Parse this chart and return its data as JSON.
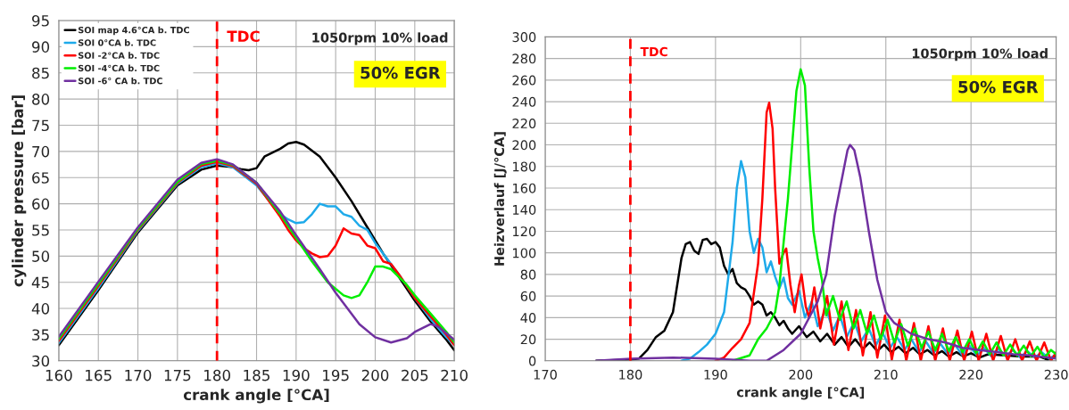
{
  "chart_data": [
    {
      "type": "line",
      "xlabel": "crank angle [°CA]",
      "ylabel": "cylinder pressure [bar]",
      "xlim": [
        160,
        210
      ],
      "xticks": [
        160,
        165,
        170,
        175,
        180,
        185,
        190,
        195,
        200,
        205,
        210
      ],
      "ylim": [
        30,
        95
      ],
      "yticks": [
        30,
        35,
        40,
        45,
        50,
        55,
        60,
        65,
        70,
        75,
        80,
        85,
        90,
        95
      ],
      "grid": true,
      "legend": "top left",
      "ref_lines": [
        {
          "axis": "x",
          "value": 180,
          "label": "TDC",
          "color": "#ff0000",
          "line_style": "dashed"
        }
      ],
      "annotations": [
        "1050rpm 10% load",
        "50% EGR"
      ],
      "series": [
        {
          "name": "SOI map 4.6°CA b. TDC",
          "color": "#000000",
          "x": [
            160,
            165,
            170,
            175,
            178,
            180,
            182,
            183,
            184,
            185,
            186,
            188,
            189,
            190,
            191,
            193,
            195,
            197,
            199,
            201,
            203,
            205,
            207,
            209,
            210
          ],
          "values": [
            33,
            43.5,
            54.5,
            63.5,
            66.5,
            67.3,
            67,
            66.6,
            66.4,
            66.8,
            69,
            70.5,
            71.5,
            71.8,
            71.3,
            69,
            65,
            60.5,
            55.5,
            50.5,
            46,
            41.5,
            37.5,
            34,
            32
          ]
        },
        {
          "name": "SOI 0°CA b. TDC",
          "color": "#1eaaea",
          "x": [
            160,
            165,
            170,
            175,
            178,
            180,
            182,
            185,
            188,
            189,
            190,
            191,
            192,
            193,
            194,
            195,
            196,
            197,
            198,
            199,
            200,
            201,
            203,
            205,
            207,
            209,
            210
          ],
          "values": [
            33.4,
            43.9,
            54.8,
            63.8,
            67,
            67.7,
            67,
            63.5,
            58,
            57,
            56.3,
            56.5,
            58,
            60,
            59.5,
            59.5,
            58,
            57.5,
            55.8,
            55,
            52.5,
            50.5,
            46.5,
            42,
            38,
            34.5,
            33
          ]
        },
        {
          "name": "SOI -2°CA b. TDC",
          "color": "#ff0000",
          "x": [
            160,
            165,
            170,
            175,
            178,
            180,
            182,
            185,
            188,
            189,
            190,
            191,
            192,
            193,
            194,
            195,
            196,
            197,
            198,
            199,
            200,
            201,
            202,
            203,
            205,
            207,
            209,
            210
          ],
          "values": [
            33.8,
            44.3,
            55,
            64,
            67.3,
            68,
            67.2,
            63.8,
            57.5,
            55,
            53,
            51.5,
            50.5,
            49.8,
            50,
            52,
            55.3,
            54.3,
            54,
            52,
            51.5,
            49,
            48.5,
            46.5,
            42,
            38.5,
            35,
            33
          ]
        },
        {
          "name": "SOI -4°CA b. TDC",
          "color": "#00ee00",
          "x": [
            160,
            165,
            170,
            175,
            178,
            180,
            182,
            185,
            188,
            190,
            192,
            194,
            196,
            197,
            198,
            199,
            200,
            201,
            202,
            203,
            204,
            205,
            207,
            209,
            210
          ],
          "values": [
            34.2,
            44.7,
            55.2,
            64.2,
            67.6,
            68.2,
            67.4,
            64,
            58,
            53.5,
            49,
            45,
            42.5,
            42,
            42.5,
            45,
            48,
            48,
            47.5,
            46,
            44.5,
            42.5,
            39,
            35.5,
            33.5
          ]
        },
        {
          "name": "SOI -6° CA b. TDC",
          "color": "#7030a0",
          "x": [
            160,
            165,
            170,
            175,
            178,
            180,
            182,
            185,
            188,
            190,
            193,
            195,
            198,
            200,
            202,
            204,
            205,
            207,
            208,
            210
          ],
          "values": [
            34.6,
            45.1,
            55.5,
            64.6,
            67.8,
            68.5,
            67.5,
            64,
            58.5,
            54,
            47.5,
            43,
            37,
            34.5,
            33.5,
            34.3,
            35.5,
            37,
            36.5,
            34
          ]
        }
      ]
    },
    {
      "type": "line",
      "xlabel": "crank angle [°CA]",
      "ylabel": "Heizverlauf [J/°CA]",
      "xlim": [
        170,
        230
      ],
      "xticks": [
        170,
        180,
        190,
        200,
        210,
        220,
        230
      ],
      "ylim": [
        0,
        300
      ],
      "yticks": [
        0,
        20,
        40,
        60,
        80,
        100,
        120,
        140,
        160,
        180,
        200,
        220,
        240,
        260,
        280,
        300
      ],
      "grid": true,
      "ref_lines": [
        {
          "axis": "x",
          "value": 180,
          "label": "TDC",
          "color": "#ff0000",
          "line_style": "dashed"
        }
      ],
      "annotations": [
        "1050rpm 10% load",
        "50% EGR"
      ],
      "series": [
        {
          "color": "#000000",
          "x": [
            176,
            180,
            181,
            182,
            183,
            184,
            185,
            186,
            186.5,
            187,
            187.5,
            188,
            188.5,
            189,
            189.5,
            190,
            190.5,
            191,
            191.5,
            192,
            192.5,
            193,
            193.5,
            194,
            194.5,
            195,
            195.5,
            196,
            196.5,
            197,
            197.5,
            198,
            198.5,
            199,
            199.8,
            200.7,
            201.5,
            202.3,
            203.1,
            204,
            204.8,
            205.6,
            206.4,
            207.3,
            208.1,
            209,
            209.8,
            210.6,
            211.5,
            212.3,
            213.2,
            214,
            214.9,
            215.7,
            216.6,
            217.4,
            218.3,
            219.1,
            220,
            221,
            222,
            224,
            226,
            228,
            229,
            230
          ],
          "values": [
            0,
            1,
            2,
            10,
            22,
            28,
            45,
            95,
            108,
            110,
            102,
            99,
            112,
            113,
            108,
            110,
            105,
            88,
            80,
            85,
            72,
            68,
            66,
            60,
            52,
            55,
            52,
            42,
            45,
            40,
            33,
            37,
            30,
            25,
            32,
            22,
            27,
            18,
            25,
            15,
            22,
            13,
            20,
            11,
            17,
            9,
            15,
            8,
            13,
            7,
            12,
            6,
            10,
            5,
            9,
            4,
            8,
            4,
            7,
            3,
            6,
            5,
            4,
            4,
            1,
            5
          ]
        },
        {
          "color": "#1eaaea",
          "x": [
            186,
            187,
            188,
            189,
            190,
            191,
            192,
            192.5,
            193,
            193.5,
            194,
            194.5,
            195,
            195.5,
            196,
            196.5,
            197,
            197.5,
            198,
            198.5,
            199,
            199.8,
            200.5,
            201.3,
            202,
            203,
            203.8,
            204.6,
            205.4,
            206.3,
            207.1,
            208,
            208.8,
            209.6,
            210.5,
            211.3,
            212.2,
            213,
            213.9,
            214.7,
            215.6,
            216.4,
            217.3,
            218.1,
            219,
            219.8,
            220.7,
            221.5,
            222.4,
            223.2,
            224.1,
            224.9,
            225.8,
            226.6,
            227.5,
            228.3,
            229.2,
            230
          ],
          "values": [
            0,
            2,
            8,
            15,
            25,
            45,
            110,
            160,
            185,
            170,
            120,
            100,
            113,
            105,
            82,
            92,
            78,
            67,
            77,
            58,
            52,
            65,
            40,
            55,
            32,
            48,
            28,
            42,
            22,
            36,
            18,
            30,
            14,
            26,
            12,
            22,
            10,
            20,
            8,
            18,
            7,
            16,
            6,
            15,
            5,
            14,
            5,
            12,
            4,
            11,
            4,
            10,
            3,
            9,
            3,
            8,
            2,
            6
          ]
        },
        {
          "color": "#ff0000",
          "x": [
            190,
            191,
            192,
            193,
            194,
            195,
            195.5,
            196,
            196.3,
            196.7,
            197,
            197.5,
            198,
            198.3,
            198.8,
            199.3,
            199.8,
            200.1,
            200.6,
            201,
            201.6,
            202.3,
            203.1,
            203.9,
            204.8,
            205.6,
            206.5,
            207.3,
            208.2,
            209,
            209.9,
            210.7,
            211.6,
            212.4,
            213.3,
            214.1,
            215,
            215.8,
            216.7,
            217.5,
            218.4,
            219.2,
            220.1,
            220.9,
            221.8,
            222.6,
            223.5,
            224.3,
            225.2,
            226,
            226.9,
            227.7,
            228.6,
            229.4,
            230
          ],
          "values": [
            0,
            3,
            12,
            20,
            35,
            90,
            150,
            230,
            239,
            215,
            160,
            90,
            100,
            104,
            70,
            45,
            70,
            80,
            50,
            40,
            68,
            30,
            60,
            15,
            55,
            10,
            47,
            5,
            45,
            3,
            42,
            1,
            38,
            0,
            35,
            0,
            32,
            0,
            30,
            0,
            28,
            0,
            27,
            0,
            25,
            0,
            23,
            0,
            20,
            0,
            18,
            0,
            17,
            0,
            8
          ]
        },
        {
          "color": "#00ee00",
          "x": [
            192,
            194,
            195,
            196,
            197,
            197.5,
            198,
            198.5,
            199,
            199.5,
            200,
            200.5,
            201,
            201.5,
            202,
            202.5,
            203,
            203.8,
            204.6,
            205.4,
            206.2,
            207,
            207.8,
            208.6,
            209.4,
            210.2,
            211,
            211.8,
            212.6,
            213.4,
            214.2,
            215,
            215.8,
            216.6,
            217.4,
            218.2,
            219,
            219.8,
            220.6,
            221.4,
            222.2,
            223,
            223.8,
            224.6,
            225.4,
            226.2,
            227,
            227.8,
            228.6,
            229.4,
            230
          ],
          "values": [
            0,
            5,
            20,
            30,
            45,
            70,
            110,
            150,
            200,
            250,
            270,
            255,
            180,
            120,
            95,
            75,
            42,
            60,
            38,
            55,
            30,
            47,
            25,
            42,
            20,
            38,
            17,
            34,
            14,
            30,
            12,
            27,
            10,
            25,
            9,
            22,
            8,
            20,
            7,
            18,
            6,
            17,
            5,
            15,
            5,
            14,
            4,
            13,
            3,
            10,
            6
          ]
        },
        {
          "color": "#7030a0",
          "x": [
            176,
            180,
            185,
            190,
            194,
            196,
            198,
            200,
            202,
            203,
            204,
            205,
            205.5,
            205.8,
            206.3,
            207,
            208,
            209,
            210,
            211,
            212,
            213,
            215,
            217,
            219,
            221,
            223,
            225,
            227,
            230
          ],
          "values": [
            0,
            2,
            3,
            2,
            0,
            0,
            10,
            25,
            55,
            80,
            135,
            175,
            195,
            200,
            195,
            170,
            120,
            75,
            45,
            35,
            30,
            25,
            20,
            17,
            12,
            10,
            8,
            6,
            5,
            2
          ]
        }
      ]
    }
  ]
}
